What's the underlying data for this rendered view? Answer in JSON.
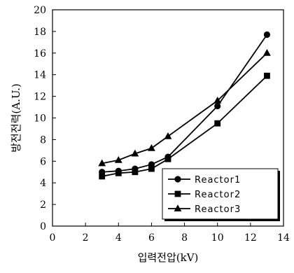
{
  "chart_data": {
    "type": "line",
    "title": "",
    "xlabel": "입력전압(kV)",
    "ylabel": "방전전력(A.U.)",
    "xlim": [
      0,
      14
    ],
    "ylim": [
      0,
      20
    ],
    "xticks": [
      0,
      2,
      4,
      6,
      8,
      10,
      12,
      14
    ],
    "yticks": [
      0,
      2,
      4,
      6,
      8,
      10,
      12,
      14,
      16,
      18,
      20
    ],
    "grid": false,
    "legend_position": "bottom-right",
    "series": [
      {
        "name": "Reactor1",
        "marker": "circle",
        "x": [
          3,
          4,
          5,
          6,
          7,
          10,
          13
        ],
        "y": [
          5.0,
          5.1,
          5.3,
          5.7,
          6.4,
          11.1,
          17.7
        ]
      },
      {
        "name": "Reactor2",
        "marker": "square",
        "x": [
          3,
          4,
          5,
          6,
          7,
          10,
          13
        ],
        "y": [
          4.6,
          4.9,
          5.0,
          5.3,
          6.2,
          9.5,
          13.9
        ]
      },
      {
        "name": "Reactor3",
        "marker": "triangle",
        "x": [
          3,
          4,
          5,
          6,
          7,
          10,
          13
        ],
        "y": [
          5.8,
          6.1,
          6.7,
          7.2,
          8.3,
          11.6,
          16.0
        ]
      }
    ]
  }
}
